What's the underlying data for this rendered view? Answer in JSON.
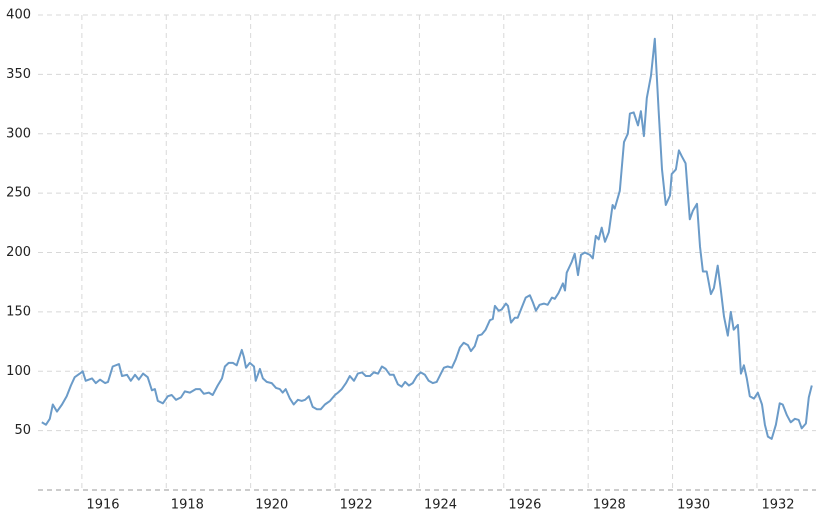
{
  "chart_data": {
    "type": "line",
    "x": [
      1915.05,
      1915.15,
      1915.24,
      1915.31,
      1915.41,
      1915.53,
      1915.64,
      1915.74,
      1915.83,
      1915.95,
      1916.02,
      1916.09,
      1916.24,
      1916.33,
      1916.43,
      1916.55,
      1916.62,
      1916.73,
      1916.88,
      1916.95,
      1917.07,
      1917.16,
      1917.26,
      1917.35,
      1917.45,
      1917.56,
      1917.66,
      1917.73,
      1917.8,
      1917.92,
      1918.04,
      1918.13,
      1918.23,
      1918.35,
      1918.44,
      1918.56,
      1918.7,
      1918.8,
      1918.89,
      1919.01,
      1919.1,
      1919.22,
      1919.32,
      1919.39,
      1919.48,
      1919.58,
      1919.67,
      1919.79,
      1919.84,
      1919.89,
      1919.98,
      1920.08,
      1920.12,
      1920.22,
      1920.29,
      1920.38,
      1920.5,
      1920.6,
      1920.69,
      1920.76,
      1920.83,
      1920.93,
      1921.02,
      1921.12,
      1921.21,
      1921.29,
      1921.38,
      1921.47,
      1921.57,
      1921.66,
      1921.76,
      1921.88,
      1922.0,
      1922.07,
      1922.16,
      1922.26,
      1922.35,
      1922.45,
      1922.54,
      1922.64,
      1922.73,
      1922.83,
      1922.92,
      1923.02,
      1923.11,
      1923.2,
      1923.3,
      1923.39,
      1923.49,
      1923.58,
      1923.66,
      1923.75,
      1923.84,
      1923.94,
      1924.03,
      1924.13,
      1924.22,
      1924.32,
      1924.41,
      1924.51,
      1924.58,
      1924.67,
      1924.77,
      1924.86,
      1924.96,
      1925.05,
      1925.15,
      1925.22,
      1925.31,
      1925.39,
      1925.48,
      1925.57,
      1925.67,
      1925.74,
      1925.79,
      1925.88,
      1925.95,
      1926.05,
      1926.1,
      1926.17,
      1926.26,
      1926.33,
      1926.43,
      1926.52,
      1926.62,
      1926.69,
      1926.76,
      1926.85,
      1926.95,
      1927.04,
      1927.14,
      1927.21,
      1927.3,
      1927.4,
      1927.45,
      1927.49,
      1927.61,
      1927.68,
      1927.76,
      1927.83,
      1927.92,
      1928.04,
      1928.11,
      1928.18,
      1928.25,
      1928.32,
      1928.4,
      1928.49,
      1928.58,
      1928.63,
      1928.75,
      1928.85,
      1928.94,
      1928.99,
      1929.08,
      1929.18,
      1929.25,
      1929.32,
      1929.39,
      1929.49,
      1929.58,
      1929.67,
      1929.75,
      1929.84,
      1929.94,
      1929.98,
      1930.08,
      1930.15,
      1930.22,
      1930.31,
      1930.41,
      1930.48,
      1930.58,
      1930.65,
      1930.72,
      1930.81,
      1930.91,
      1930.98,
      1931.07,
      1931.14,
      1931.22,
      1931.31,
      1931.38,
      1931.45,
      1931.55,
      1931.62,
      1931.69,
      1931.76,
      1931.83,
      1931.93,
      1932.02,
      1932.12,
      1932.19,
      1932.26,
      1932.35,
      1932.45,
      1932.54,
      1932.61,
      1932.71,
      1932.8,
      1932.9,
      1932.99,
      1933.06,
      1933.16,
      1933.23,
      1933.3
    ],
    "series": [
      {
        "color": "#6b9bc8",
        "values": [
          57,
          55,
          60,
          72,
          66,
          72,
          79,
          88,
          95,
          98,
          100,
          92,
          94,
          90,
          93,
          90,
          91,
          104,
          106,
          96,
          97,
          92,
          97,
          93,
          98,
          95,
          84,
          85,
          75,
          73,
          79,
          80,
          76,
          78,
          83,
          82,
          85,
          85,
          81,
          82,
          80,
          88,
          94,
          104,
          107,
          107,
          105,
          118,
          112,
          103,
          107,
          104,
          92,
          102,
          94,
          91,
          90,
          86,
          85,
          82,
          85,
          77,
          72,
          76,
          75,
          76,
          79,
          70,
          68,
          68,
          72,
          75,
          80,
          82,
          85,
          90,
          96,
          92,
          98,
          99,
          96,
          96,
          99,
          98,
          104,
          102,
          97,
          97,
          89,
          87,
          91,
          88,
          90,
          96,
          99,
          97,
          92,
          90,
          91,
          98,
          103,
          104,
          103,
          110,
          120,
          124,
          122,
          117,
          121,
          130,
          131,
          135,
          143,
          144,
          155,
          151,
          152,
          157,
          155,
          141,
          145,
          145,
          154,
          162,
          164,
          158,
          151,
          156,
          157,
          156,
          162,
          161,
          166,
          174,
          168,
          183,
          192,
          199,
          181,
          198,
          200,
          198,
          195,
          214,
          211,
          221,
          209,
          217,
          240,
          237,
          252,
          293,
          300,
          317,
          318,
          307,
          319,
          298,
          330,
          349,
          380,
          320,
          270,
          240,
          248,
          266,
          270,
          286,
          281,
          275,
          228,
          235,
          241,
          205,
          184,
          184,
          165,
          170,
          189,
          170,
          146,
          130,
          150,
          135,
          139,
          98,
          105,
          94,
          79,
          77,
          82,
          72,
          55,
          45,
          43,
          55,
          73,
          72,
          63,
          57,
          60,
          59,
          52,
          56,
          78,
          88
        ]
      }
    ],
    "xlim": [
      1914.96,
      1933.4
    ],
    "xticks": [
      1916,
      1918,
      1920,
      1922,
      1924,
      1926,
      1928,
      1930,
      1932
    ],
    "ylim": [
      0,
      400
    ],
    "yticks": [
      50,
      100,
      150,
      200,
      250,
      300,
      350,
      400
    ],
    "grid": true
  }
}
